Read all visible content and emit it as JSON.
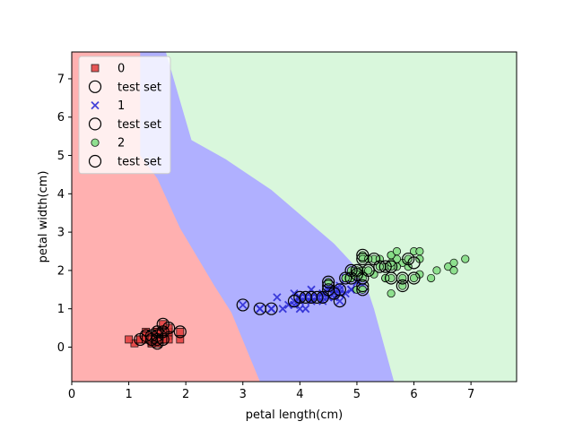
{
  "chart_data": {
    "type": "scatter",
    "title": "",
    "xlabel": "petal length(cm)",
    "ylabel": "petal width(cm)",
    "xlim": [
      0,
      7.8
    ],
    "ylim": [
      -0.9,
      7.7
    ],
    "xticks": [
      0,
      1,
      2,
      3,
      4,
      5,
      6,
      7
    ],
    "yticks": [
      0,
      1,
      2,
      3,
      4,
      5,
      6,
      7
    ],
    "grid": false,
    "legend_position": "top-left",
    "regions": {
      "colors": {
        "0": "#ffb0b0",
        "1": "#b0b0ff",
        "2": "#d9f7dc"
      },
      "boundary_0_1": [
        [
          1.2,
          7.7
        ],
        [
          1.2,
          5.0
        ],
        [
          1.5,
          4.4
        ],
        [
          1.9,
          3.1
        ],
        [
          2.5,
          1.6
        ],
        [
          2.8,
          0.9
        ],
        [
          3.3,
          -0.9
        ]
      ],
      "boundary_1_2": [
        [
          1.65,
          7.7
        ],
        [
          2.1,
          5.4
        ],
        [
          2.7,
          4.9
        ],
        [
          3.5,
          4.1
        ],
        [
          4.6,
          2.7
        ],
        [
          5.1,
          1.9
        ],
        [
          5.3,
          1.0
        ],
        [
          5.65,
          -0.9
        ]
      ]
    },
    "series": [
      {
        "name": "0",
        "marker": "square",
        "color": "#e23b3b",
        "points": [
          [
            1.4,
            0.2
          ],
          [
            1.4,
            0.2
          ],
          [
            1.3,
            0.2
          ],
          [
            1.5,
            0.2
          ],
          [
            1.4,
            0.2
          ],
          [
            1.7,
            0.4
          ],
          [
            1.4,
            0.3
          ],
          [
            1.5,
            0.2
          ],
          [
            1.4,
            0.2
          ],
          [
            1.5,
            0.1
          ],
          [
            1.5,
            0.2
          ],
          [
            1.6,
            0.2
          ],
          [
            1.4,
            0.1
          ],
          [
            1.1,
            0.1
          ],
          [
            1.2,
            0.2
          ],
          [
            1.5,
            0.4
          ],
          [
            1.3,
            0.4
          ],
          [
            1.4,
            0.3
          ],
          [
            1.7,
            0.3
          ],
          [
            1.5,
            0.3
          ],
          [
            1.7,
            0.2
          ],
          [
            1.5,
            0.4
          ],
          [
            1.0,
            0.2
          ],
          [
            1.7,
            0.5
          ],
          [
            1.9,
            0.2
          ],
          [
            1.6,
            0.2
          ],
          [
            1.6,
            0.4
          ],
          [
            1.5,
            0.2
          ],
          [
            1.4,
            0.2
          ],
          [
            1.6,
            0.2
          ],
          [
            1.6,
            0.2
          ],
          [
            1.5,
            0.4
          ],
          [
            1.5,
            0.1
          ],
          [
            1.4,
            0.2
          ],
          [
            1.5,
            0.2
          ],
          [
            1.2,
            0.2
          ],
          [
            1.3,
            0.2
          ],
          [
            1.4,
            0.1
          ],
          [
            1.3,
            0.2
          ],
          [
            1.5,
            0.2
          ],
          [
            1.3,
            0.3
          ],
          [
            1.3,
            0.3
          ],
          [
            1.3,
            0.2
          ],
          [
            1.6,
            0.6
          ],
          [
            1.9,
            0.4
          ],
          [
            1.4,
            0.3
          ],
          [
            1.6,
            0.2
          ],
          [
            1.4,
            0.2
          ],
          [
            1.5,
            0.2
          ],
          [
            1.4,
            0.2
          ]
        ]
      },
      {
        "name": "1",
        "marker": "x",
        "color": "#2f2fd6",
        "points": [
          [
            4.7,
            1.4
          ],
          [
            4.5,
            1.5
          ],
          [
            4.9,
            1.5
          ],
          [
            4.0,
            1.3
          ],
          [
            4.6,
            1.5
          ],
          [
            4.5,
            1.3
          ],
          [
            4.7,
            1.6
          ],
          [
            3.3,
            1.0
          ],
          [
            4.6,
            1.3
          ],
          [
            3.9,
            1.4
          ],
          [
            3.5,
            1.0
          ],
          [
            4.2,
            1.5
          ],
          [
            4.0,
            1.0
          ],
          [
            4.7,
            1.4
          ],
          [
            3.6,
            1.3
          ],
          [
            4.4,
            1.4
          ],
          [
            4.5,
            1.5
          ],
          [
            4.1,
            1.0
          ],
          [
            4.5,
            1.5
          ],
          [
            3.9,
            1.1
          ],
          [
            4.8,
            1.8
          ],
          [
            4.0,
            1.3
          ],
          [
            4.9,
            1.5
          ],
          [
            4.7,
            1.2
          ],
          [
            4.3,
            1.3
          ],
          [
            4.4,
            1.4
          ],
          [
            4.8,
            1.4
          ],
          [
            5.0,
            1.7
          ],
          [
            4.5,
            1.5
          ],
          [
            3.5,
            1.0
          ],
          [
            3.8,
            1.1
          ],
          [
            3.7,
            1.0
          ],
          [
            3.9,
            1.2
          ],
          [
            5.1,
            1.6
          ],
          [
            4.5,
            1.5
          ],
          [
            4.5,
            1.6
          ],
          [
            4.7,
            1.5
          ],
          [
            4.4,
            1.3
          ],
          [
            4.1,
            1.3
          ],
          [
            4.0,
            1.3
          ],
          [
            4.4,
            1.2
          ],
          [
            4.6,
            1.4
          ],
          [
            4.0,
            1.2
          ],
          [
            3.3,
            1.0
          ],
          [
            4.2,
            1.3
          ],
          [
            4.2,
            1.2
          ],
          [
            4.2,
            1.3
          ],
          [
            4.3,
            1.3
          ],
          [
            3.0,
            1.1
          ],
          [
            4.1,
            1.3
          ]
        ]
      },
      {
        "name": "2",
        "marker": "circle",
        "color": "#86de86",
        "points": [
          [
            6.0,
            2.5
          ],
          [
            5.1,
            1.9
          ],
          [
            5.9,
            2.1
          ],
          [
            5.6,
            1.8
          ],
          [
            5.8,
            2.2
          ],
          [
            6.6,
            2.1
          ],
          [
            4.5,
            1.7
          ],
          [
            6.3,
            1.8
          ],
          [
            5.8,
            1.8
          ],
          [
            6.1,
            2.5
          ],
          [
            5.1,
            2.0
          ],
          [
            5.3,
            1.9
          ],
          [
            5.5,
            2.1
          ],
          [
            5.0,
            2.0
          ],
          [
            5.1,
            2.4
          ],
          [
            5.3,
            2.3
          ],
          [
            5.5,
            1.8
          ],
          [
            6.7,
            2.2
          ],
          [
            6.9,
            2.3
          ],
          [
            5.0,
            1.5
          ],
          [
            5.7,
            2.3
          ],
          [
            4.9,
            2.0
          ],
          [
            6.7,
            2.0
          ],
          [
            4.9,
            1.8
          ],
          [
            5.7,
            2.1
          ],
          [
            6.0,
            1.8
          ],
          [
            4.8,
            1.8
          ],
          [
            4.9,
            1.8
          ],
          [
            5.6,
            2.1
          ],
          [
            5.8,
            1.6
          ],
          [
            6.1,
            1.9
          ],
          [
            6.4,
            2.0
          ],
          [
            5.6,
            2.2
          ],
          [
            5.1,
            1.5
          ],
          [
            5.6,
            1.4
          ],
          [
            6.1,
            2.3
          ],
          [
            5.6,
            2.4
          ],
          [
            5.5,
            1.8
          ],
          [
            4.8,
            1.8
          ],
          [
            5.4,
            2.1
          ],
          [
            5.6,
            2.4
          ],
          [
            5.1,
            2.3
          ],
          [
            5.1,
            1.9
          ],
          [
            5.9,
            2.3
          ],
          [
            5.7,
            2.5
          ],
          [
            5.2,
            2.3
          ],
          [
            5.0,
            1.9
          ],
          [
            5.2,
            2.0
          ],
          [
            5.4,
            2.3
          ],
          [
            5.1,
            1.8
          ]
        ]
      },
      {
        "name": "test set",
        "marker": "hollow-circle",
        "color": "#000000",
        "points": [
          [
            1.2,
            0.2
          ],
          [
            1.5,
            0.2
          ],
          [
            1.4,
            0.2
          ],
          [
            1.6,
            0.6
          ],
          [
            1.7,
            0.5
          ],
          [
            1.9,
            0.4
          ],
          [
            1.5,
            0.3
          ],
          [
            1.4,
            0.2
          ],
          [
            1.6,
            0.2
          ],
          [
            1.3,
            0.3
          ],
          [
            1.5,
            0.1
          ],
          [
            1.6,
            0.4
          ],
          [
            1.4,
            0.3
          ],
          [
            1.5,
            0.4
          ],
          [
            3.0,
            1.1
          ],
          [
            3.3,
            1.0
          ],
          [
            3.5,
            1.0
          ],
          [
            3.9,
            1.2
          ],
          [
            4.0,
            1.3
          ],
          [
            4.1,
            1.3
          ],
          [
            4.2,
            1.3
          ],
          [
            4.3,
            1.3
          ],
          [
            4.5,
            1.5
          ],
          [
            4.5,
            1.6
          ],
          [
            4.6,
            1.4
          ],
          [
            4.4,
            1.3
          ],
          [
            4.7,
            1.2
          ],
          [
            4.7,
            1.5
          ],
          [
            4.5,
            1.7
          ],
          [
            4.8,
            1.8
          ],
          [
            4.9,
            1.8
          ],
          [
            4.9,
            2.0
          ],
          [
            5.0,
            1.9
          ],
          [
            5.0,
            2.0
          ],
          [
            5.1,
            1.5
          ],
          [
            5.1,
            1.6
          ],
          [
            5.1,
            1.8
          ],
          [
            5.1,
            2.3
          ],
          [
            5.1,
            2.4
          ],
          [
            5.2,
            2.0
          ],
          [
            5.3,
            2.3
          ],
          [
            5.4,
            2.1
          ],
          [
            5.5,
            2.1
          ],
          [
            5.6,
            2.1
          ],
          [
            5.6,
            1.8
          ],
          [
            5.8,
            1.6
          ],
          [
            5.8,
            1.8
          ],
          [
            5.9,
            2.3
          ],
          [
            6.0,
            1.8
          ],
          [
            6.0,
            2.2
          ]
        ]
      }
    ],
    "legend": [
      {
        "label": "0",
        "marker": "square",
        "color": "#e23b3b"
      },
      {
        "label": "test set",
        "marker": "hollow-circle",
        "color": "#000000"
      },
      {
        "label": "1",
        "marker": "x",
        "color": "#2f2fd6"
      },
      {
        "label": "test set",
        "marker": "hollow-circle",
        "color": "#000000"
      },
      {
        "label": "2",
        "marker": "circle",
        "color": "#86de86"
      },
      {
        "label": "test set",
        "marker": "hollow-circle",
        "color": "#000000"
      }
    ]
  }
}
